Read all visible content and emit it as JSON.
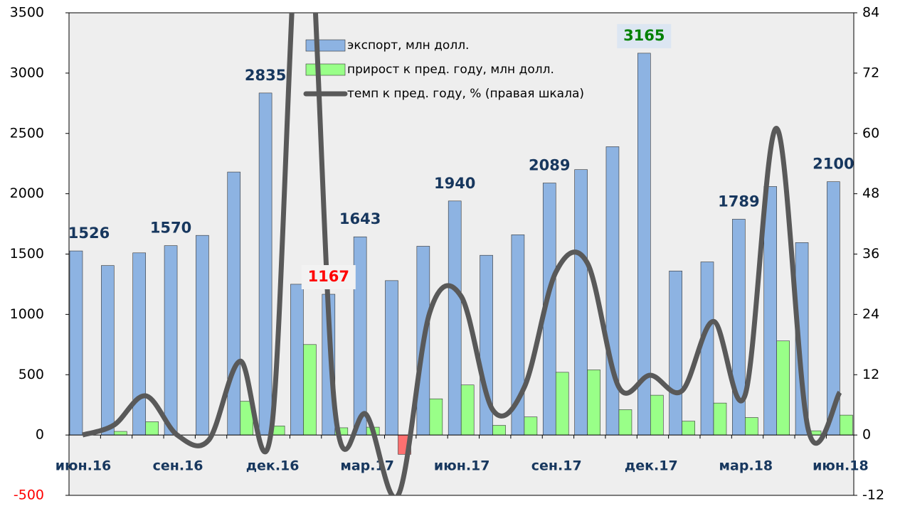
{
  "chart_data": {
    "type": "bar",
    "categories": [
      "июн.16",
      null,
      null,
      "сен.16",
      null,
      null,
      "дек.16",
      null,
      null,
      "мар.17",
      null,
      null,
      "июн.17",
      null,
      null,
      "сен.17",
      null,
      null,
      "дек.17",
      null,
      null,
      "мар.18",
      null,
      null,
      "июн.18"
    ],
    "series": [
      {
        "name": "экспорт, млн долл.",
        "color": "#8db3e2",
        "type": "bar",
        "values": [
          1526,
          1405,
          1510,
          1570,
          1655,
          2180,
          2835,
          1250,
          1167,
          1643,
          1280,
          1565,
          1940,
          1490,
          1660,
          2089,
          2200,
          2390,
          3165,
          1360,
          1435,
          1789,
          2060,
          1595,
          2100
        ],
        "value_labels": [
          "1526",
          null,
          null,
          "1570",
          null,
          null,
          "2835",
          null,
          "1167",
          "1643",
          null,
          null,
          "1940",
          null,
          null,
          "2089",
          null,
          null,
          "3165",
          null,
          null,
          "1789",
          null,
          null,
          "2100"
        ],
        "value_label_colors": [
          "#17375e",
          null,
          null,
          "#17375e",
          null,
          null,
          "#17375e",
          null,
          "#ff0000",
          "#17375e",
          null,
          null,
          "#17375e",
          null,
          null,
          "#17375e",
          null,
          null,
          "#008000",
          null,
          null,
          "#17375e",
          null,
          null,
          "#17375e"
        ]
      },
      {
        "name": "прирост к пред. году, млн долл.",
        "color": "#99ff88",
        "negative_color": "#ff7070",
        "type": "bar",
        "values": [
          null,
          30,
          110,
          null,
          null,
          280,
          75,
          750,
          60,
          65,
          -160,
          300,
          415,
          80,
          150,
          520,
          540,
          210,
          330,
          115,
          265,
          145,
          780,
          35,
          165
        ]
      },
      {
        "name": "темп к пред. году, % (правая шкала)",
        "color": "#595959",
        "type": "line",
        "axis": "y2",
        "values": [
          0,
          2,
          7.8,
          0,
          -1,
          14.7,
          1.7,
          115,
          5,
          4,
          -12,
          24.3,
          27.6,
          5,
          9.5,
          32.4,
          34.2,
          9.5,
          11.9,
          8.8,
          22.6,
          8,
          61,
          1.1,
          8.5
        ]
      }
    ],
    "ylim": [
      -500,
      3500
    ],
    "yticks": [
      -500,
      0,
      500,
      1000,
      1500,
      2000,
      2500,
      3000,
      3500
    ],
    "y2lim": [
      -12,
      84
    ],
    "y2ticks": [
      -12,
      0,
      12,
      24,
      36,
      48,
      60,
      72,
      84
    ]
  }
}
